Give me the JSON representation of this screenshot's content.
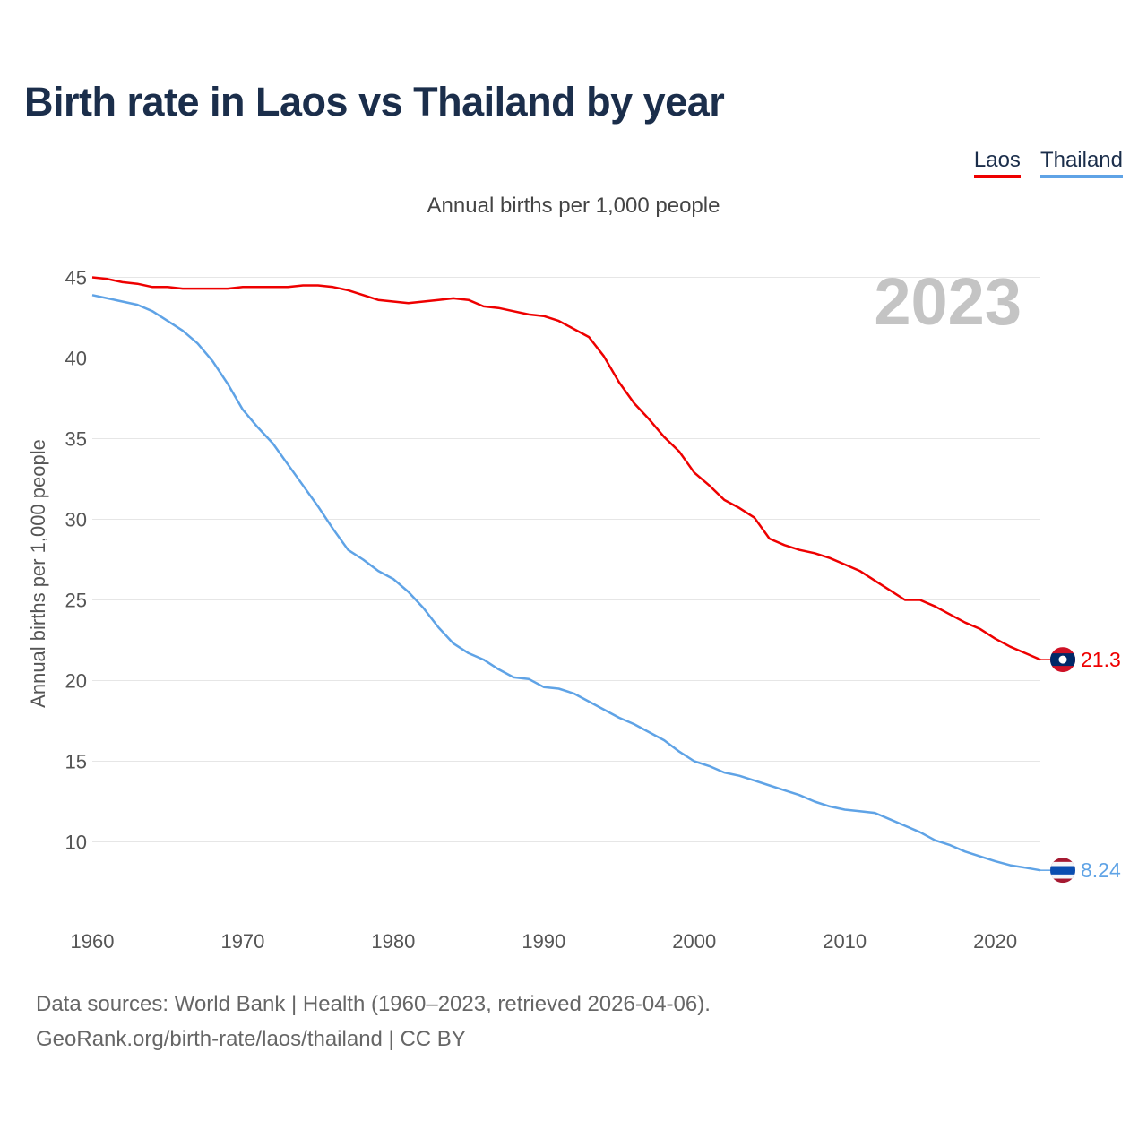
{
  "title": "Birth rate in Laos vs Thailand by year",
  "legend": [
    {
      "label": "Laos",
      "color": "#ee0000"
    },
    {
      "label": "Thailand",
      "color": "#5fa3e6"
    }
  ],
  "footer": {
    "line1": "Data sources: World Bank | Health (1960–2023, retrieved 2026-04-06).",
    "line2": "GeoRank.org/birth-rate/laos/thailand | CC BY"
  },
  "chart_data": {
    "type": "line",
    "title": "Annual births per 1,000 people",
    "ylabel": "Annual births per 1,000 people",
    "xlabel": "",
    "year_label": "2023",
    "xlim": [
      1960,
      2023
    ],
    "ylim": [
      6,
      45
    ],
    "yticks": [
      10,
      15,
      20,
      25,
      30,
      35,
      40,
      45
    ],
    "xticks": [
      1960,
      1970,
      1980,
      1990,
      2000,
      2010,
      2020
    ],
    "grid": true,
    "x": [
      1960,
      1961,
      1962,
      1963,
      1964,
      1965,
      1966,
      1967,
      1968,
      1969,
      1970,
      1971,
      1972,
      1973,
      1974,
      1975,
      1976,
      1977,
      1978,
      1979,
      1980,
      1981,
      1982,
      1983,
      1984,
      1985,
      1986,
      1987,
      1988,
      1989,
      1990,
      1991,
      1992,
      1993,
      1994,
      1995,
      1996,
      1997,
      1998,
      1999,
      2000,
      2001,
      2002,
      2003,
      2004,
      2005,
      2006,
      2007,
      2008,
      2009,
      2010,
      2011,
      2012,
      2013,
      2014,
      2015,
      2016,
      2017,
      2018,
      2019,
      2020,
      2021,
      2022,
      2023
    ],
    "series": [
      {
        "name": "Laos",
        "color": "#ee0000",
        "end_label": "21.3",
        "flag": "laos-flag-icon",
        "values": [
          45.0,
          44.9,
          44.7,
          44.6,
          44.4,
          44.4,
          44.3,
          44.3,
          44.3,
          44.3,
          44.4,
          44.4,
          44.4,
          44.4,
          44.5,
          44.5,
          44.4,
          44.2,
          43.9,
          43.6,
          43.5,
          43.4,
          43.5,
          43.6,
          43.7,
          43.6,
          43.2,
          43.1,
          42.9,
          42.7,
          42.6,
          42.3,
          41.8,
          41.3,
          40.1,
          38.5,
          37.2,
          36.2,
          35.1,
          34.2,
          32.9,
          32.1,
          31.2,
          30.7,
          30.1,
          28.8,
          28.4,
          28.1,
          27.9,
          27.6,
          27.2,
          26.8,
          26.2,
          25.6,
          25.0,
          25.0,
          24.6,
          24.1,
          23.6,
          23.2,
          22.6,
          22.1,
          21.7,
          21.3
        ]
      },
      {
        "name": "Thailand",
        "color": "#5fa3e6",
        "end_label": "8.24",
        "flag": "thailand-flag-icon",
        "values": [
          43.9,
          43.7,
          43.5,
          43.3,
          42.9,
          42.3,
          41.7,
          40.9,
          39.8,
          38.4,
          36.8,
          35.7,
          34.7,
          33.4,
          32.1,
          30.8,
          29.4,
          28.1,
          27.5,
          26.8,
          26.3,
          25.5,
          24.5,
          23.3,
          22.3,
          21.7,
          21.3,
          20.7,
          20.2,
          20.1,
          19.6,
          19.5,
          19.2,
          18.7,
          18.2,
          17.7,
          17.3,
          16.8,
          16.3,
          15.6,
          15.0,
          14.7,
          14.3,
          14.1,
          13.8,
          13.5,
          13.2,
          12.9,
          12.5,
          12.2,
          12.0,
          11.9,
          11.8,
          11.4,
          11.0,
          10.6,
          10.1,
          9.8,
          9.4,
          9.1,
          8.8,
          8.55,
          8.4,
          8.24
        ]
      }
    ]
  }
}
